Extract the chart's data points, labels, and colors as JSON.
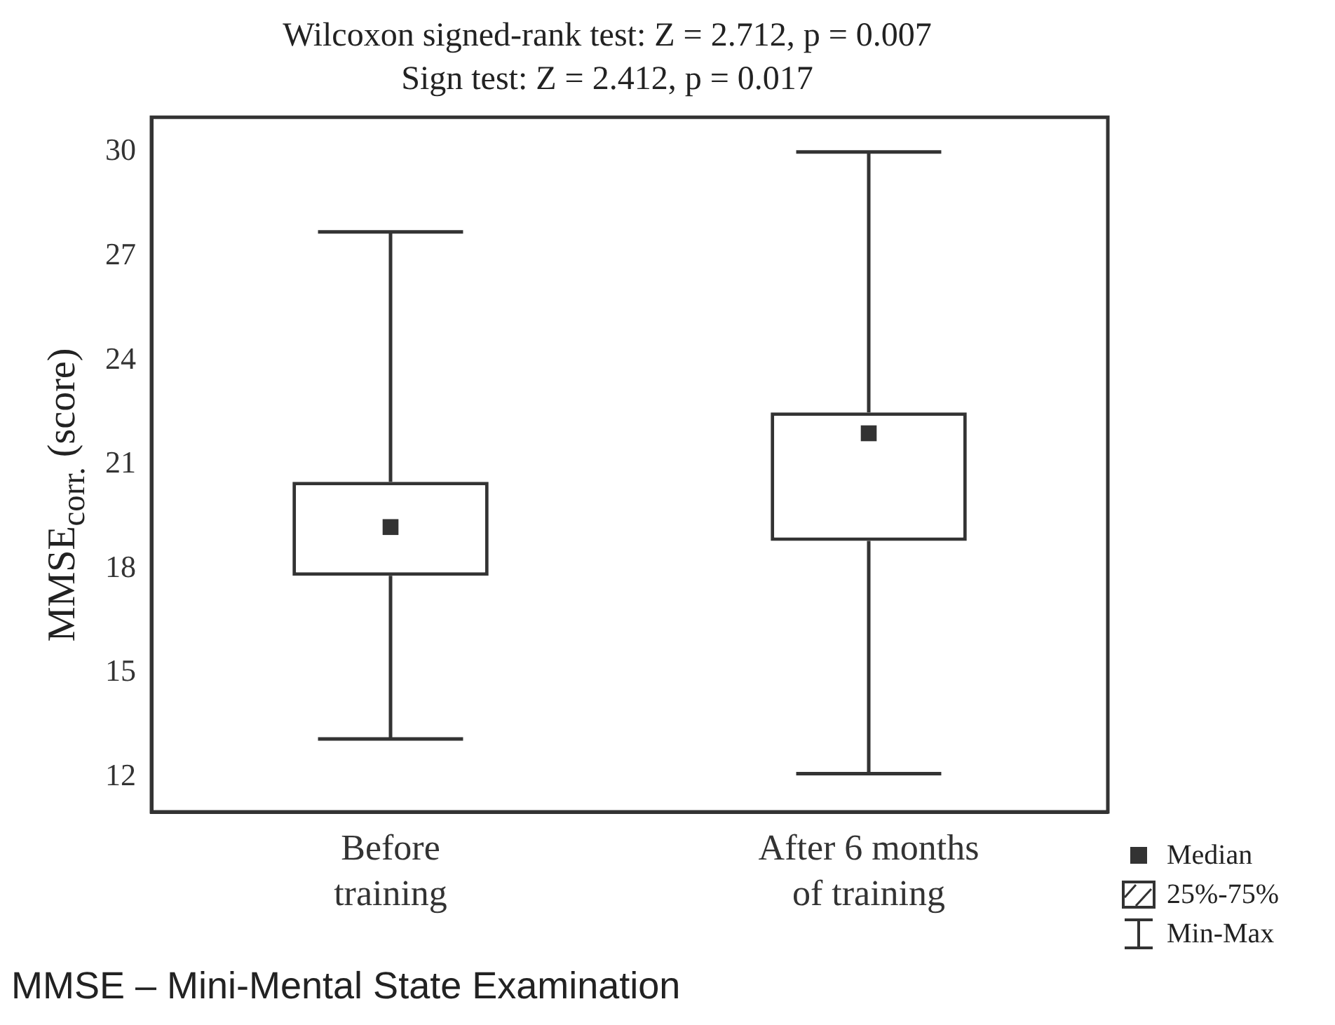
{
  "chart_data": {
    "type": "box",
    "title": "Wilcoxon signed-rank test: Z = 2.712, p = 0.007",
    "subtitle": "Sign test: Z = 2.412, p = 0.017",
    "ylabel": "MMSE$_{corr.}$ (score)",
    "categories": [
      "Before training",
      "After 6 months of training"
    ],
    "boxes": [
      {
        "low": 13.1,
        "q1": 17.8,
        "median": 19.2,
        "q3": 20.5,
        "high": 27.7
      },
      {
        "low": 12.1,
        "q1": 18.8,
        "median": 21.9,
        "q3": 22.5,
        "high": 30.0
      }
    ],
    "color": "#333333",
    "ylim": [
      11,
      31
    ],
    "yticks": [
      12,
      15,
      18,
      21,
      24,
      27,
      30
    ],
    "grid": false,
    "marker": "square",
    "annotations": [
      "MMSE – Mini-Mental State Examination",
      "Median",
      "25%-75%",
      "Min-Max"
    ]
  }
}
